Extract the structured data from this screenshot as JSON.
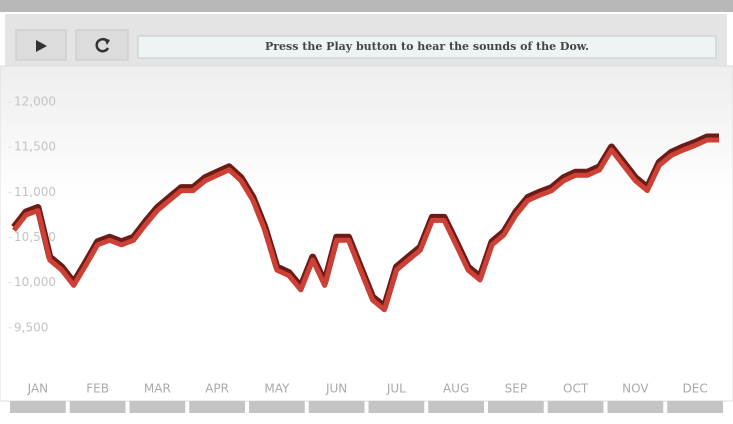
{
  "ui": {
    "status": "Press the Play button to hear the sounds of the Dow."
  },
  "chart_data": {
    "type": "line",
    "categories": [
      null,
      null,
      "JAN",
      null,
      null,
      null,
      null,
      "FEB",
      null,
      null,
      null,
      null,
      "MAR",
      null,
      null,
      null,
      null,
      "APR",
      null,
      null,
      null,
      null,
      "MAY",
      null,
      null,
      null,
      null,
      "JUN",
      null,
      null,
      null,
      null,
      "JUL",
      null,
      null,
      null,
      null,
      "AUG",
      null,
      null,
      null,
      null,
      "SEP",
      null,
      null,
      null,
      null,
      "OCT",
      null,
      null,
      null,
      null,
      "NOV",
      null,
      null,
      null,
      null,
      "DEC",
      null,
      null
    ],
    "series": [
      {
        "color": "#cc4035",
        "values": [
          10580,
          10750,
          10800,
          10250,
          10140,
          9970,
          10190,
          10420,
          10470,
          10420,
          10470,
          10640,
          10800,
          10910,
          11020,
          11020,
          11130,
          11190,
          11250,
          11130,
          10910,
          10580,
          10140,
          10080,
          9920,
          10250,
          9970,
          10470,
          10470,
          10140,
          9810,
          9700,
          10140,
          10250,
          10360,
          10690,
          10690,
          10420,
          10140,
          10030,
          10420,
          10530,
          10750,
          10910,
          10970,
          11020,
          11130,
          11190,
          11190,
          11250,
          11470,
          11300,
          11130,
          11020,
          11300,
          11410,
          11470,
          11520,
          11580,
          11580
        ]
      }
    ],
    "ylim": [
      9000,
      12300
    ],
    "yticks": [
      {
        "value": 9500,
        "label": "9,500"
      },
      {
        "value": 10000,
        "label": "10,000"
      },
      {
        "value": 10500,
        "label": "10,500"
      },
      {
        "value": 11000,
        "label": "11,000"
      },
      {
        "value": 11500,
        "label": "11,500"
      },
      {
        "value": 12000,
        "label": "12,000"
      }
    ]
  }
}
